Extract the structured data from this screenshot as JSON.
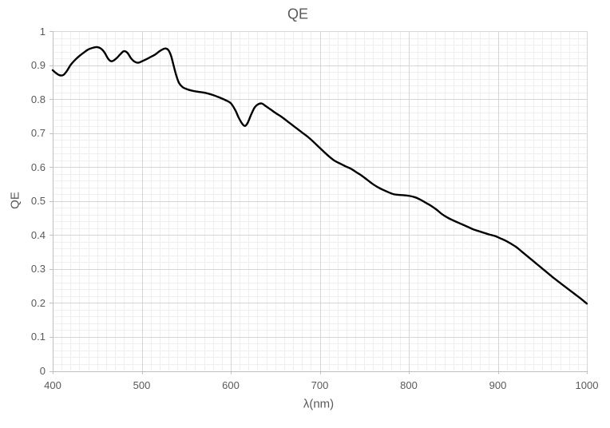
{
  "chart_data": {
    "type": "line",
    "title": "QE",
    "xlabel": "λ(nm)",
    "ylabel": "QE",
    "xlim": [
      400,
      1000
    ],
    "ylim": [
      0,
      1
    ],
    "x_tick_labels": [
      "400",
      "500",
      "600",
      "700",
      "800",
      "900",
      "1000"
    ],
    "y_tick_labels": [
      "0",
      "0.1",
      "0.2",
      "0.3",
      "0.4",
      "0.5",
      "0.6",
      "0.7",
      "0.8",
      "0.9",
      "1"
    ],
    "x_minor_step": 10,
    "y_minor_step": 0.02,
    "grid": "major+minor",
    "legend": "none",
    "colors": {
      "line": "#000000",
      "major_grid": "#d6d6d6",
      "minor_grid": "#efefef",
      "axis": "#bfbfbf",
      "text": "#595959",
      "background": "#ffffff"
    },
    "series": [
      {
        "name": "QE",
        "points": [
          [
            400,
            0.885
          ],
          [
            404,
            0.876
          ],
          [
            408,
            0.87
          ],
          [
            412,
            0.871
          ],
          [
            416,
            0.883
          ],
          [
            420,
            0.9
          ],
          [
            425,
            0.915
          ],
          [
            430,
            0.927
          ],
          [
            435,
            0.937
          ],
          [
            440,
            0.946
          ],
          [
            445,
            0.951
          ],
          [
            450,
            0.953
          ],
          [
            454,
            0.949
          ],
          [
            458,
            0.938
          ],
          [
            462,
            0.92
          ],
          [
            465,
            0.912
          ],
          [
            468,
            0.913
          ],
          [
            472,
            0.921
          ],
          [
            476,
            0.932
          ],
          [
            480,
            0.941
          ],
          [
            484,
            0.936
          ],
          [
            488,
            0.92
          ],
          [
            492,
            0.91
          ],
          [
            496,
            0.907
          ],
          [
            500,
            0.911
          ],
          [
            505,
            0.917
          ],
          [
            510,
            0.924
          ],
          [
            515,
            0.931
          ],
          [
            520,
            0.941
          ],
          [
            524,
            0.947
          ],
          [
            527,
            0.949
          ],
          [
            530,
            0.944
          ],
          [
            533,
            0.927
          ],
          [
            536,
            0.897
          ],
          [
            539,
            0.868
          ],
          [
            542,
            0.847
          ],
          [
            546,
            0.835
          ],
          [
            552,
            0.828
          ],
          [
            558,
            0.824
          ],
          [
            565,
            0.821
          ],
          [
            572,
            0.818
          ],
          [
            580,
            0.812
          ],
          [
            588,
            0.804
          ],
          [
            594,
            0.797
          ],
          [
            600,
            0.788
          ],
          [
            605,
            0.768
          ],
          [
            609,
            0.745
          ],
          [
            613,
            0.727
          ],
          [
            616,
            0.721
          ],
          [
            619,
            0.73
          ],
          [
            623,
            0.755
          ],
          [
            627,
            0.776
          ],
          [
            631,
            0.785
          ],
          [
            635,
            0.787
          ],
          [
            639,
            0.78
          ],
          [
            645,
            0.769
          ],
          [
            651,
            0.758
          ],
          [
            657,
            0.748
          ],
          [
            663,
            0.736
          ],
          [
            669,
            0.724
          ],
          [
            675,
            0.712
          ],
          [
            681,
            0.7
          ],
          [
            687,
            0.688
          ],
          [
            693,
            0.674
          ],
          [
            699,
            0.659
          ],
          [
            705,
            0.644
          ],
          [
            711,
            0.63
          ],
          [
            717,
            0.618
          ],
          [
            723,
            0.61
          ],
          [
            729,
            0.602
          ],
          [
            735,
            0.595
          ],
          [
            741,
            0.585
          ],
          [
            747,
            0.575
          ],
          [
            753,
            0.563
          ],
          [
            759,
            0.551
          ],
          [
            765,
            0.541
          ],
          [
            771,
            0.533
          ],
          [
            777,
            0.526
          ],
          [
            783,
            0.52
          ],
          [
            789,
            0.518
          ],
          [
            795,
            0.517
          ],
          [
            801,
            0.515
          ],
          [
            807,
            0.511
          ],
          [
            813,
            0.504
          ],
          [
            819,
            0.495
          ],
          [
            825,
            0.486
          ],
          [
            831,
            0.475
          ],
          [
            837,
            0.462
          ],
          [
            843,
            0.452
          ],
          [
            849,
            0.444
          ],
          [
            855,
            0.437
          ],
          [
            861,
            0.43
          ],
          [
            867,
            0.423
          ],
          [
            873,
            0.416
          ],
          [
            879,
            0.411
          ],
          [
            885,
            0.406
          ],
          [
            891,
            0.401
          ],
          [
            897,
            0.397
          ],
          [
            903,
            0.39
          ],
          [
            909,
            0.383
          ],
          [
            915,
            0.374
          ],
          [
            921,
            0.364
          ],
          [
            927,
            0.351
          ],
          [
            933,
            0.338
          ],
          [
            939,
            0.325
          ],
          [
            945,
            0.312
          ],
          [
            951,
            0.299
          ],
          [
            957,
            0.286
          ],
          [
            963,
            0.273
          ],
          [
            969,
            0.261
          ],
          [
            975,
            0.249
          ],
          [
            981,
            0.237
          ],
          [
            987,
            0.225
          ],
          [
            993,
            0.213
          ],
          [
            1000,
            0.198
          ]
        ]
      }
    ]
  }
}
